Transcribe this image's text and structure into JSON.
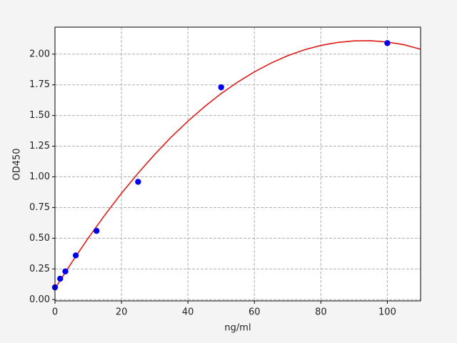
{
  "chart_data": {
    "type": "scatter",
    "x_label": "ng/ml",
    "y_label": "OD450",
    "xlim": [
      0,
      110
    ],
    "ylim": [
      -0.01,
      2.22
    ],
    "xticks": [
      0,
      20,
      40,
      60,
      80,
      100
    ],
    "yticks": [
      {
        "value": 0,
        "label": "0.00"
      },
      {
        "value": 0.25,
        "label": "0.25"
      },
      {
        "value": 0.5,
        "label": "0.50"
      },
      {
        "value": 0.75,
        "label": "0.75"
      },
      {
        "value": 1,
        "label": "1.00"
      },
      {
        "value": 1.25,
        "label": "1.25"
      },
      {
        "value": 1.5,
        "label": "1.50"
      },
      {
        "value": 1.75,
        "label": "1.75"
      },
      {
        "value": 2,
        "label": "2.00"
      }
    ],
    "grid": true,
    "series": [
      {
        "type": "line",
        "color": "#dd1c1a",
        "x": [
          0,
          5,
          10,
          15,
          20,
          25,
          30,
          35,
          40,
          45,
          50,
          55,
          60,
          65,
          70,
          75,
          80,
          85,
          90,
          95,
          100,
          105,
          110
        ],
        "values": [
          0.09,
          0.301,
          0.501,
          0.689,
          0.866,
          1.03,
          1.183,
          1.325,
          1.454,
          1.572,
          1.679,
          1.773,
          1.856,
          1.927,
          1.987,
          2.035,
          2.071,
          2.095,
          2.108,
          2.11,
          2.099,
          2.077,
          2.04
        ]
      },
      {
        "type": "scatter",
        "color": "#0000ee",
        "x": [
          0,
          1.5625,
          3.125,
          6.25,
          12.5,
          25,
          50,
          100
        ],
        "values": [
          0.1,
          0.17,
          0.23,
          0.36,
          0.56,
          0.96,
          1.73,
          2.09
        ]
      }
    ]
  }
}
